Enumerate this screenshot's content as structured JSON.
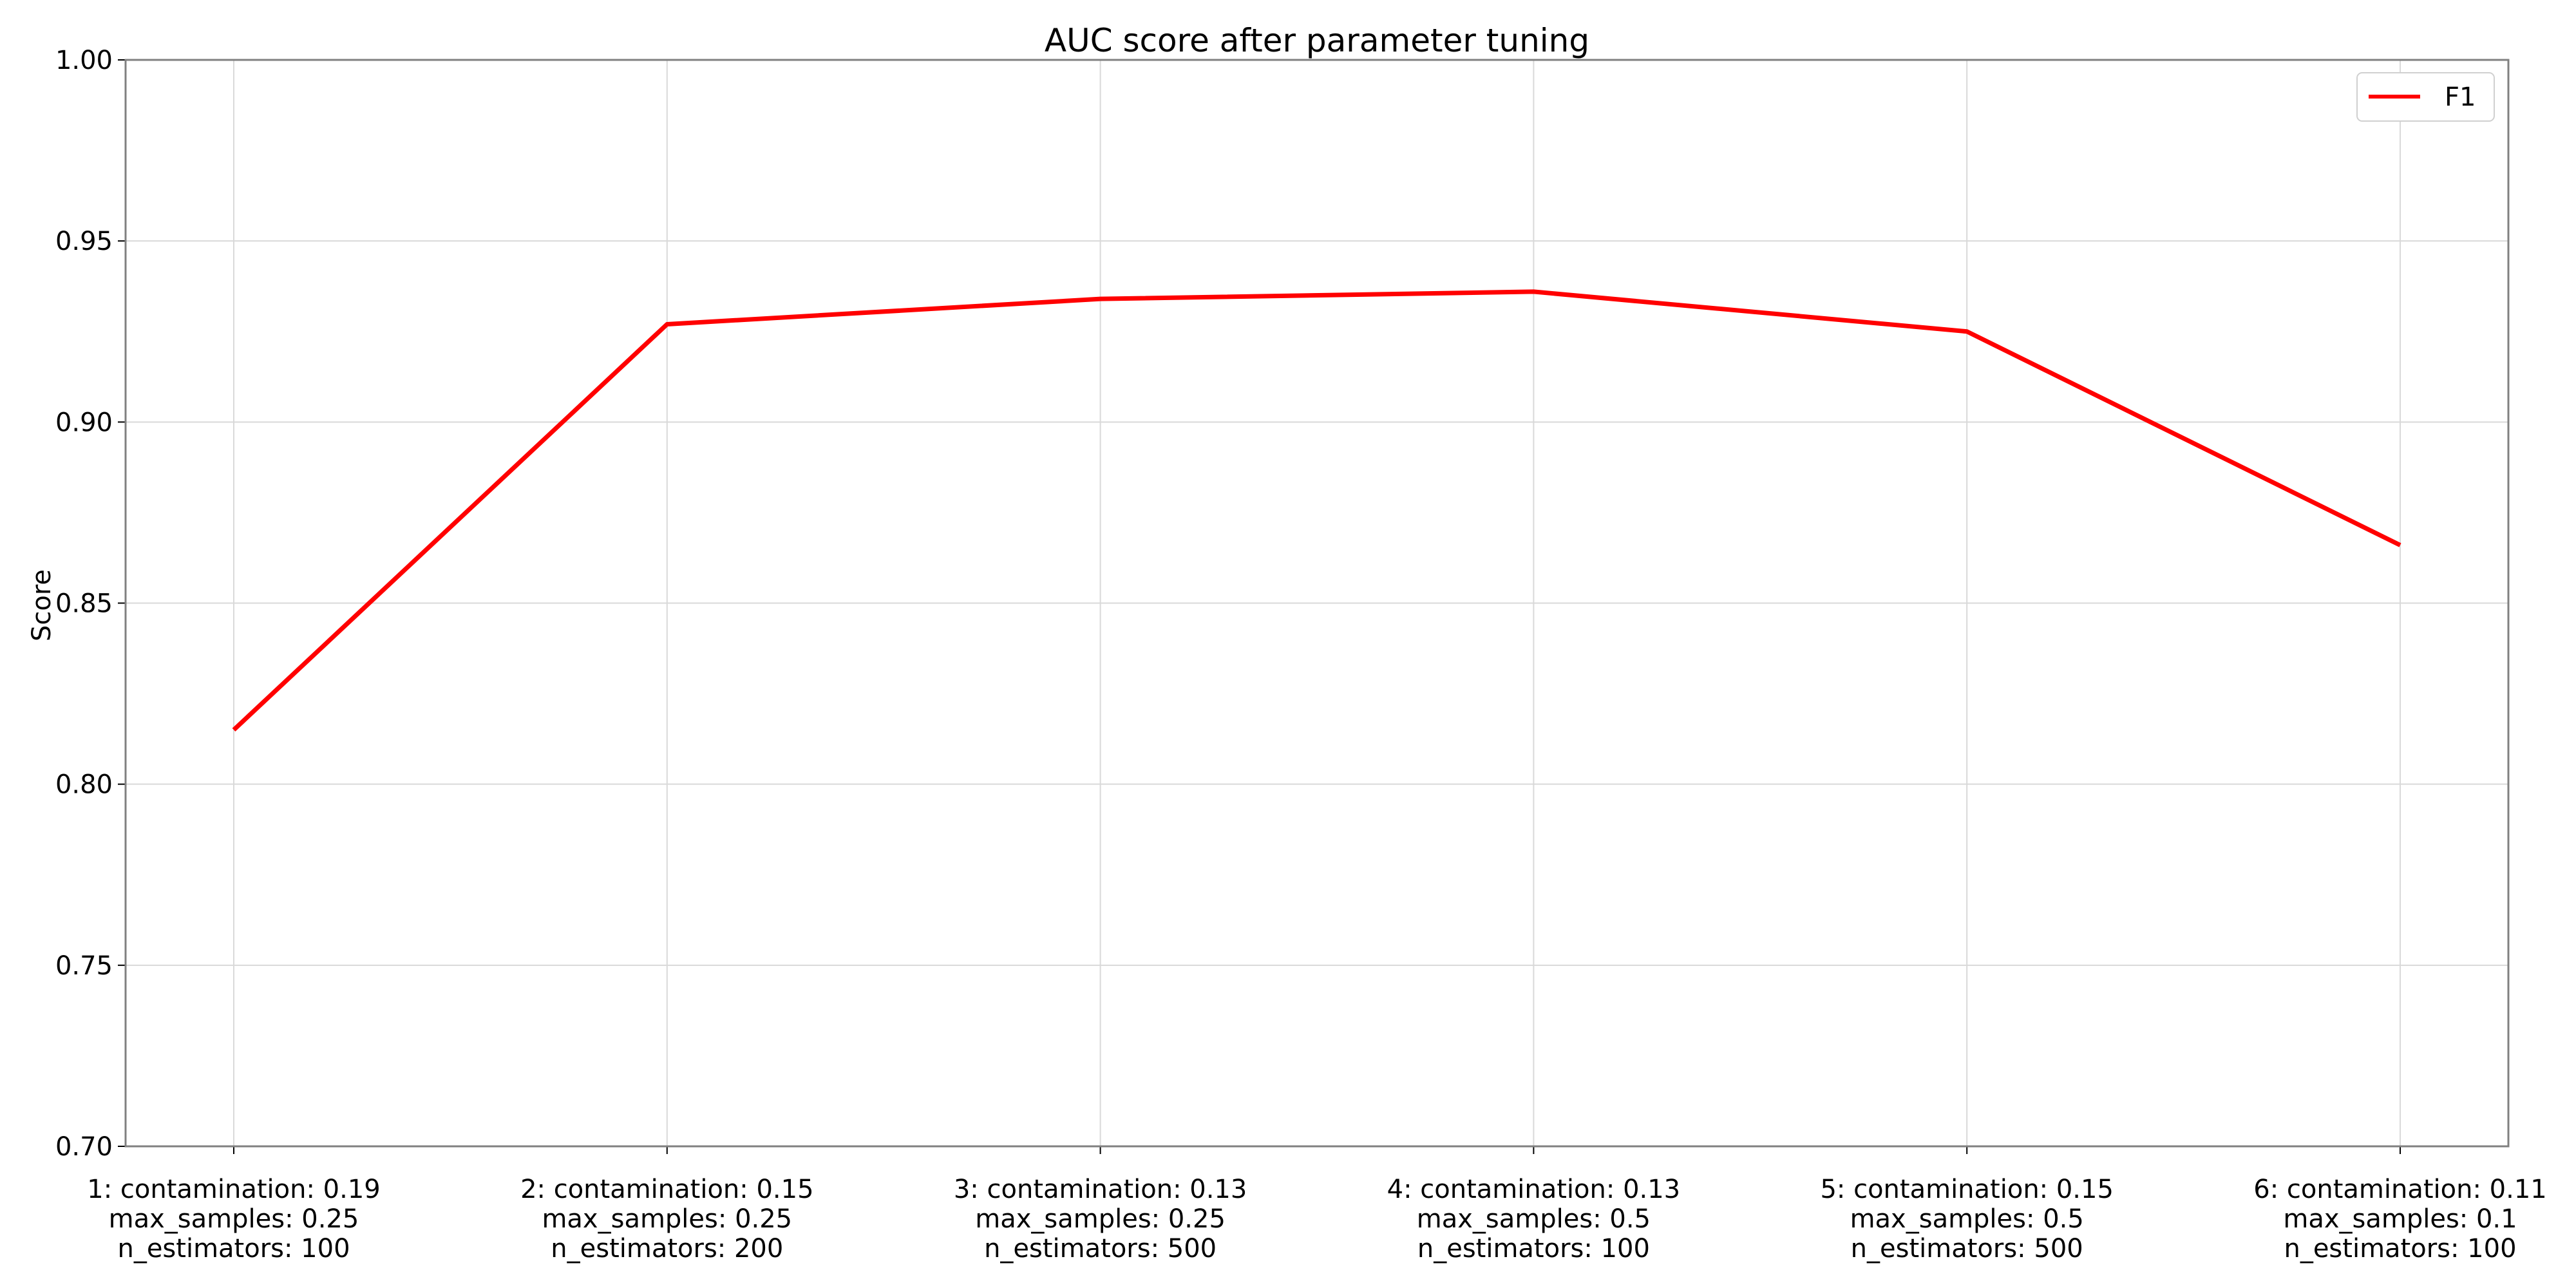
{
  "chart_data": {
    "type": "line",
    "title": "AUC score after parameter tuning",
    "xlabel": "",
    "ylabel": "Score",
    "ylim": [
      0.7,
      1.0
    ],
    "yticks": [
      "0.70",
      "0.75",
      "0.80",
      "0.85",
      "0.90",
      "0.95",
      "1.00"
    ],
    "categories": [
      [
        "1: contamination: 0.19",
        "max_samples: 0.25",
        "n_estimators: 100"
      ],
      [
        "2: contamination: 0.15",
        "max_samples: 0.25",
        "n_estimators: 200"
      ],
      [
        "3: contamination: 0.13",
        "max_samples: 0.25",
        "n_estimators: 500"
      ],
      [
        "4: contamination: 0.13",
        "max_samples: 0.5",
        "n_estimators: 100"
      ],
      [
        "5: contamination: 0.15",
        "max_samples: 0.5",
        "n_estimators: 500"
      ],
      [
        "6: contamination: 0.11",
        "max_samples: 0.1",
        "n_estimators: 100"
      ]
    ],
    "series": [
      {
        "name": "F1",
        "color": "#ff0000",
        "values": [
          0.815,
          0.927,
          0.934,
          0.936,
          0.925,
          0.866
        ]
      }
    ],
    "grid": true,
    "legend_position": "top-right"
  }
}
